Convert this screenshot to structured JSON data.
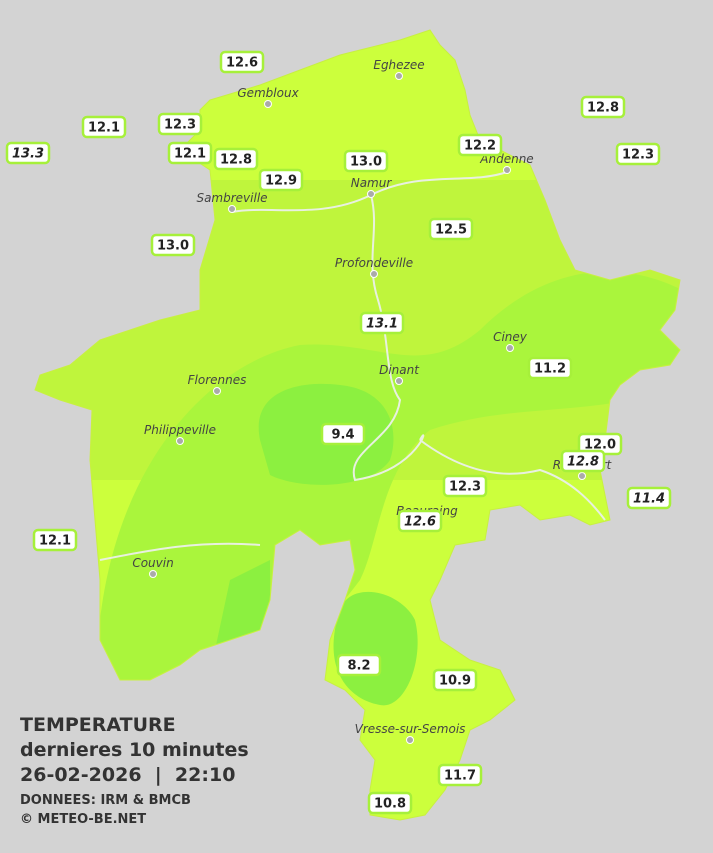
{
  "towns": [
    "Eghezee",
    "Gembloux",
    "Andenne",
    "Namur",
    "Sambreville",
    "Profondeville",
    "Ciney",
    "Dinant",
    "Florennes",
    "Philippeville",
    "Rochefort",
    "Beauraing",
    "Couvin",
    "Vresse-sur-Semois"
  ],
  "stations": [
    {
      "value": "12.6"
    },
    {
      "value": "12.1"
    },
    {
      "value": "12.3"
    },
    {
      "value": "13.3",
      "italic": true
    },
    {
      "value": "12.1"
    },
    {
      "value": "12.8"
    },
    {
      "value": "12.9"
    },
    {
      "value": "13.0"
    },
    {
      "value": "12.2"
    },
    {
      "value": "12.8"
    },
    {
      "value": "12.3"
    },
    {
      "value": "13.0"
    },
    {
      "value": "12.5"
    },
    {
      "value": "13.1",
      "italic": true
    },
    {
      "value": "11.2"
    },
    {
      "value": "9.4"
    },
    {
      "value": "12.0"
    },
    {
      "value": "12.8",
      "italic": true
    },
    {
      "value": "12.3"
    },
    {
      "value": "11.4",
      "italic": true
    },
    {
      "value": "12.6",
      "italic": true
    },
    {
      "value": "12.1"
    },
    {
      "value": "8.2"
    },
    {
      "value": "10.9"
    },
    {
      "value": "11.7"
    },
    {
      "value": "10.8"
    }
  ],
  "legend": {
    "title": "TEMPERATURE",
    "subtitle": "dernieres 10 minutes",
    "datetime": "26-02-2026  |  22:10",
    "source": "DONNEES: IRM & BMCB",
    "copyright": "© METEO-BE.NET"
  }
}
